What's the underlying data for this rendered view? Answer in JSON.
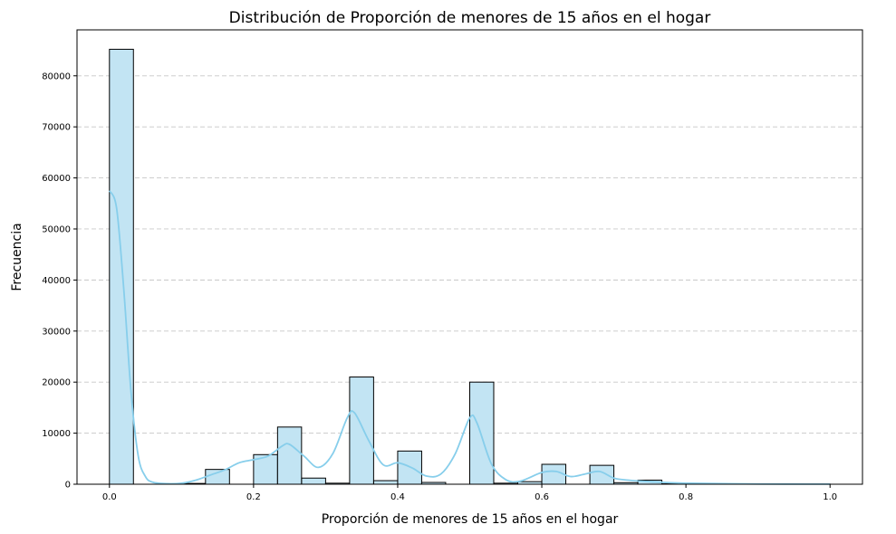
{
  "chart_data": {
    "type": "bar",
    "title": "Distribución de Proporción de menores de 15 años en el hogar",
    "xlabel": "Proporción de menores de 15 años en el hogar",
    "ylabel": "Frecuencia",
    "xlim": [
      -0.045,
      1.045
    ],
    "ylim": [
      0,
      89000
    ],
    "xticks": [
      "0.0",
      "0.2",
      "0.4",
      "0.6",
      "0.8",
      "1.0"
    ],
    "yticks": [
      "0",
      "10000",
      "20000",
      "30000",
      "40000",
      "50000",
      "60000",
      "70000",
      "80000"
    ],
    "grid": "y-dashed",
    "bar_color": "#c2e4f3",
    "edge_color": "#000000",
    "kde_color": "#87ceeb",
    "bin_width": 0.0333,
    "bins": [
      {
        "start": 0.0,
        "value": 85200
      },
      {
        "start": 0.0333,
        "value": 0
      },
      {
        "start": 0.0667,
        "value": 0
      },
      {
        "start": 0.1,
        "value": 150
      },
      {
        "start": 0.1333,
        "value": 2900
      },
      {
        "start": 0.1667,
        "value": 0
      },
      {
        "start": 0.2,
        "value": 5800
      },
      {
        "start": 0.2333,
        "value": 11200
      },
      {
        "start": 0.2667,
        "value": 1200
      },
      {
        "start": 0.3,
        "value": 200
      },
      {
        "start": 0.3333,
        "value": 21000
      },
      {
        "start": 0.3667,
        "value": 700
      },
      {
        "start": 0.4,
        "value": 6500
      },
      {
        "start": 0.4333,
        "value": 350
      },
      {
        "start": 0.4667,
        "value": 0
      },
      {
        "start": 0.5,
        "value": 20000
      },
      {
        "start": 0.5333,
        "value": 200
      },
      {
        "start": 0.5667,
        "value": 500
      },
      {
        "start": 0.6,
        "value": 3900
      },
      {
        "start": 0.6333,
        "value": 0
      },
      {
        "start": 0.6667,
        "value": 3700
      },
      {
        "start": 0.7,
        "value": 300
      },
      {
        "start": 0.7333,
        "value": 800
      },
      {
        "start": 0.7667,
        "value": 80
      },
      {
        "start": 0.8,
        "value": 50
      },
      {
        "start": 0.8333,
        "value": 0
      },
      {
        "start": 0.8667,
        "value": 30
      },
      {
        "start": 0.9,
        "value": 0
      },
      {
        "start": 0.9333,
        "value": 0
      },
      {
        "start": 0.9667,
        "value": 30
      }
    ],
    "kde": {
      "x": [
        0.0,
        0.01,
        0.02,
        0.03,
        0.04,
        0.05,
        0.06,
        0.08,
        0.1,
        0.12,
        0.14,
        0.16,
        0.18,
        0.2,
        0.22,
        0.24,
        0.25,
        0.27,
        0.29,
        0.31,
        0.33,
        0.34,
        0.36,
        0.38,
        0.4,
        0.42,
        0.44,
        0.46,
        0.48,
        0.5,
        0.51,
        0.53,
        0.55,
        0.57,
        0.6,
        0.62,
        0.64,
        0.66,
        0.68,
        0.7,
        0.72,
        0.75,
        0.8,
        0.9,
        1.0
      ],
      "y": [
        57500,
        54000,
        38000,
        18000,
        5500,
        1500,
        400,
        100,
        200,
        800,
        1800,
        2800,
        4200,
        4800,
        5500,
        7500,
        7800,
        5500,
        3300,
        6000,
        13000,
        14000,
        8500,
        3800,
        4200,
        3200,
        1600,
        2000,
        6000,
        13000,
        12000,
        4000,
        900,
        600,
        2300,
        2500,
        1500,
        2000,
        2500,
        1200,
        800,
        500,
        200,
        50,
        20
      ]
    }
  }
}
